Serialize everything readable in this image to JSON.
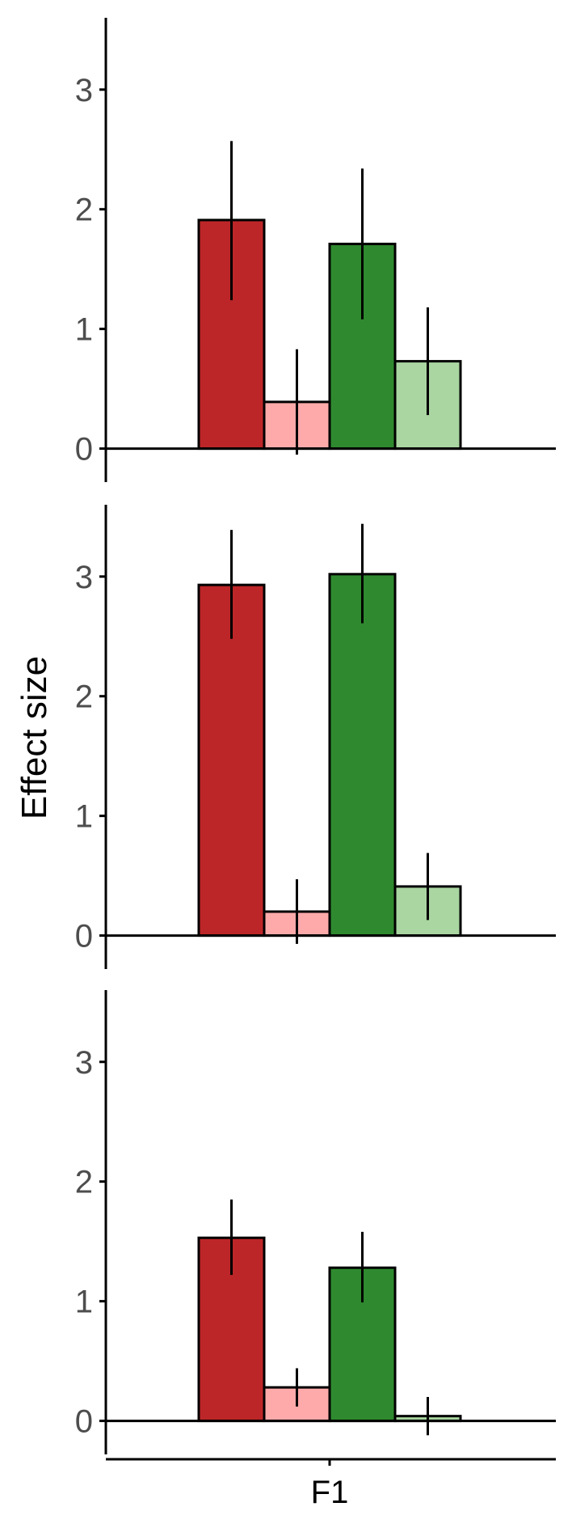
{
  "chart_data": {
    "type": "bar",
    "ylabel": "Effect size",
    "xlabel": "",
    "categories": [
      "F1"
    ],
    "ylim": [
      -0.28,
      3.6
    ],
    "yticks": [
      0,
      1,
      2,
      3
    ],
    "grid": false,
    "legend": "none",
    "series_colors": [
      "#bd2628",
      "#ffaaaa",
      "#2f8a2f",
      "#a9d6a1"
    ],
    "panels": [
      {
        "series": [
          {
            "values": [
              1.91
            ],
            "ci": [
              [
                1.24,
                2.57
              ]
            ]
          },
          {
            "values": [
              0.39
            ],
            "ci": [
              [
                -0.05,
                0.83
              ]
            ]
          },
          {
            "values": [
              1.71
            ],
            "ci": [
              [
                1.08,
                2.34
              ]
            ]
          },
          {
            "values": [
              0.73
            ],
            "ci": [
              [
                0.28,
                1.18
              ]
            ]
          }
        ]
      },
      {
        "series": [
          {
            "values": [
              2.93
            ],
            "ci": [
              [
                2.48,
                3.39
              ]
            ]
          },
          {
            "values": [
              0.2
            ],
            "ci": [
              [
                -0.07,
                0.47
              ]
            ]
          },
          {
            "values": [
              3.02
            ],
            "ci": [
              [
                2.61,
                3.44
              ]
            ]
          },
          {
            "values": [
              0.41
            ],
            "ci": [
              [
                0.13,
                0.69
              ]
            ]
          }
        ]
      },
      {
        "series": [
          {
            "values": [
              1.53
            ],
            "ci": [
              [
                1.22,
                1.85
              ]
            ]
          },
          {
            "values": [
              0.28
            ],
            "ci": [
              [
                0.12,
                0.44
              ]
            ]
          },
          {
            "values": [
              1.28
            ],
            "ci": [
              [
                0.99,
                1.58
              ]
            ]
          },
          {
            "values": [
              0.04
            ],
            "ci": [
              [
                -0.12,
                0.2
              ]
            ]
          }
        ]
      }
    ]
  }
}
